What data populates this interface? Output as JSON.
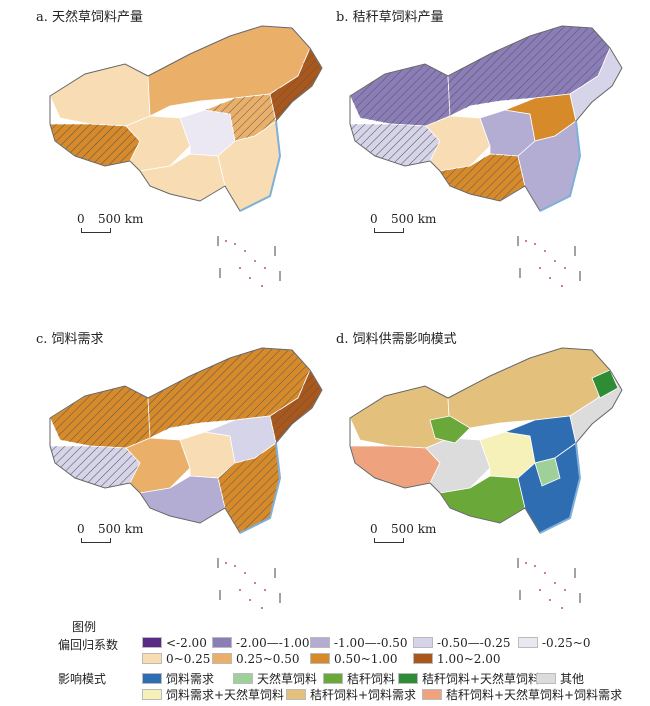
{
  "panels": [
    {
      "title": "a. 天然草饲料产量",
      "scale": "500 km",
      "scale_zero": "0"
    },
    {
      "title": "b. 秸秆草饲料产量",
      "scale": "500 km",
      "scale_zero": "0"
    },
    {
      "title": "c. 饲料需求",
      "scale": "500 km",
      "scale_zero": "0"
    },
    {
      "title": "d. 饲料供需影响模式",
      "scale": "500 km",
      "scale_zero": "0"
    }
  ],
  "legend": {
    "title": "图例",
    "coef_label": "偏回归系数",
    "coef_items": [
      {
        "label": "<-2.00",
        "color": "#5b2a86"
      },
      {
        "label": "-2.00—-1.00",
        "color": "#8b7db8"
      },
      {
        "label": "-1.00—-0.50",
        "color": "#b3acd3"
      },
      {
        "label": "-0.50—-0.25",
        "color": "#d6d4e8"
      },
      {
        "label": "-0.25~0",
        "color": "#ebe8f4"
      },
      {
        "label": "0~0.25",
        "color": "#f7dcb4"
      },
      {
        "label": "0.25~0.50",
        "color": "#eab06a"
      },
      {
        "label": "0.50~1.00",
        "color": "#d78a2a"
      },
      {
        "label": "1.00~2.00",
        "color": "#a9571b"
      }
    ],
    "mode_label": "影响模式",
    "mode_items": [
      {
        "label": "饲料需求",
        "color": "#2f6db3"
      },
      {
        "label": "天然草饲料",
        "color": "#9fd09a"
      },
      {
        "label": "秸秆饲料",
        "color": "#6aa83a"
      },
      {
        "label": "秸秆饲料+天然草饲料",
        "color": "#2e8c34"
      },
      {
        "label": "其他",
        "color": "#dcdcdc"
      },
      {
        "label": "饲料需求+天然草饲料",
        "color": "#f5f1b8"
      },
      {
        "label": "秸秆饲料+饲料需求",
        "color": "#e3c07c"
      },
      {
        "label": "秸秆饲料+天然草饲料+饲料需求",
        "color": "#eea27e"
      }
    ]
  }
}
